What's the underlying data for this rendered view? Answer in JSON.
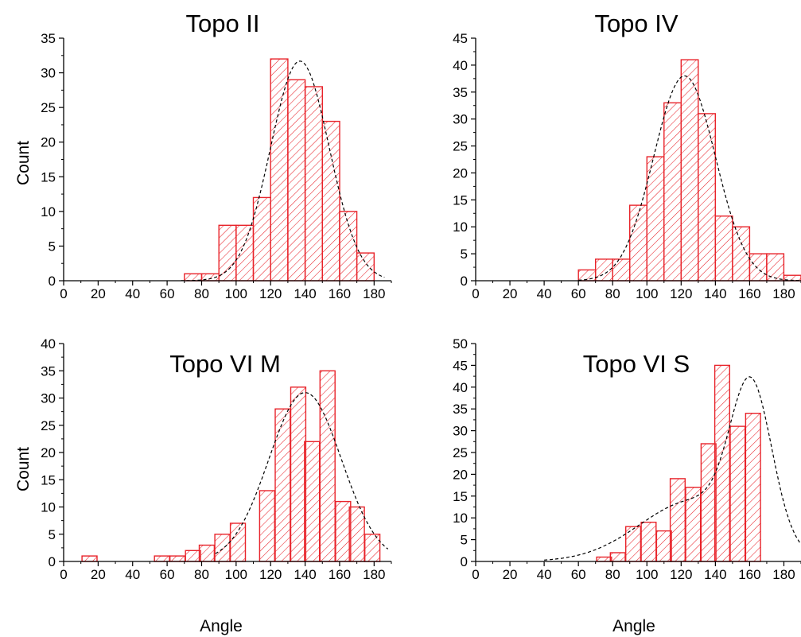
{
  "colors": {
    "bar_edge": "#e8232a",
    "hatch": "#e8232a",
    "fit_line": "#000000",
    "axis": "#000000"
  },
  "chart_data": [
    {
      "type": "bar",
      "title": "Topo II",
      "xlabel": "",
      "ylabel": "Count",
      "xlim": [
        0,
        190
      ],
      "ylim": [
        0,
        35
      ],
      "xticks": [
        0,
        20,
        40,
        60,
        80,
        100,
        120,
        140,
        160,
        180
      ],
      "yticks": [
        0,
        5,
        10,
        15,
        20,
        25,
        30,
        35
      ],
      "bin_width": 10,
      "bins": [
        {
          "x": 75,
          "y": 1
        },
        {
          "x": 85,
          "y": 1
        },
        {
          "x": 95,
          "y": 8
        },
        {
          "x": 105,
          "y": 8
        },
        {
          "x": 115,
          "y": 12
        },
        {
          "x": 125,
          "y": 32
        },
        {
          "x": 135,
          "y": 29
        },
        {
          "x": 145,
          "y": 28
        },
        {
          "x": 155,
          "y": 23
        },
        {
          "x": 165,
          "y": 10
        },
        {
          "x": 175,
          "y": 4
        }
      ],
      "fit": {
        "type": "gaussian",
        "center": 137,
        "sigma": 17,
        "amplitude": 31.7,
        "x_range": [
          68,
          186
        ]
      }
    },
    {
      "type": "bar",
      "title": "Topo IV",
      "xlabel": "",
      "ylabel": "",
      "xlim": [
        0,
        190
      ],
      "ylim": [
        0,
        45
      ],
      "xticks": [
        0,
        20,
        40,
        60,
        80,
        100,
        120,
        140,
        160,
        180
      ],
      "yticks": [
        0,
        5,
        10,
        15,
        20,
        25,
        30,
        35,
        40,
        45
      ],
      "bin_width": 10,
      "bins": [
        {
          "x": 65,
          "y": 2
        },
        {
          "x": 75,
          "y": 4
        },
        {
          "x": 85,
          "y": 4
        },
        {
          "x": 95,
          "y": 14
        },
        {
          "x": 105,
          "y": 23
        },
        {
          "x": 115,
          "y": 33
        },
        {
          "x": 125,
          "y": 41
        },
        {
          "x": 135,
          "y": 31
        },
        {
          "x": 145,
          "y": 12
        },
        {
          "x": 155,
          "y": 10
        },
        {
          "x": 165,
          "y": 5
        },
        {
          "x": 175,
          "y": 5
        },
        {
          "x": 185,
          "y": 1
        }
      ],
      "fit": {
        "type": "gaussian",
        "center": 122,
        "sigma": 18,
        "amplitude": 38,
        "x_range": [
          60,
          190
        ]
      }
    },
    {
      "type": "bar",
      "title": "Topo VI M",
      "xlabel": "Angle",
      "ylabel": "Count",
      "xlim": [
        0,
        190
      ],
      "ylim": [
        0,
        40
      ],
      "xticks": [
        0,
        20,
        40,
        60,
        80,
        100,
        120,
        140,
        160,
        180
      ],
      "yticks": [
        0,
        5,
        10,
        15,
        20,
        25,
        30,
        35,
        40
      ],
      "bin_width": 8.7,
      "bins": [
        {
          "x": 15,
          "y": 1
        },
        {
          "x": 57,
          "y": 1
        },
        {
          "x": 66,
          "y": 1
        },
        {
          "x": 75,
          "y": 2
        },
        {
          "x": 83,
          "y": 3
        },
        {
          "x": 92,
          "y": 5
        },
        {
          "x": 101,
          "y": 7
        },
        {
          "x": 110,
          "y": 0
        },
        {
          "x": 118,
          "y": 13
        },
        {
          "x": 127,
          "y": 28
        },
        {
          "x": 136,
          "y": 32
        },
        {
          "x": 144,
          "y": 22
        },
        {
          "x": 153,
          "y": 35
        },
        {
          "x": 162,
          "y": 11
        },
        {
          "x": 170,
          "y": 10
        },
        {
          "x": 179,
          "y": 5
        }
      ],
      "fit": {
        "type": "gaussian",
        "center": 140,
        "sigma": 21,
        "amplitude": 31,
        "x_range": [
          88,
          188
        ]
      }
    },
    {
      "type": "bar",
      "title": "Topo VI S",
      "xlabel": "Angle",
      "ylabel": "",
      "xlim": [
        0,
        190
      ],
      "ylim": [
        0,
        50
      ],
      "xticks": [
        0,
        20,
        40,
        60,
        80,
        100,
        120,
        140,
        160,
        180
      ],
      "yticks": [
        0,
        5,
        10,
        15,
        20,
        25,
        30,
        35,
        40,
        45,
        50
      ],
      "bin_width": 8.7,
      "bins": [
        {
          "x": 75,
          "y": 1
        },
        {
          "x": 83,
          "y": 2
        },
        {
          "x": 92,
          "y": 8
        },
        {
          "x": 101,
          "y": 9
        },
        {
          "x": 110,
          "y": 7
        },
        {
          "x": 118,
          "y": 19
        },
        {
          "x": 127,
          "y": 17
        },
        {
          "x": 136,
          "y": 27
        },
        {
          "x": 144,
          "y": 45
        },
        {
          "x": 153,
          "y": 31
        },
        {
          "x": 162,
          "y": 34
        }
      ],
      "fit": {
        "type": "gaussian-sum",
        "components": [
          {
            "center": 161,
            "sigma": 12,
            "amplitude": 34
          },
          {
            "center": 128,
            "sigma": 32,
            "amplitude": 14
          }
        ],
        "x_range": [
          40,
          190
        ]
      }
    }
  ]
}
